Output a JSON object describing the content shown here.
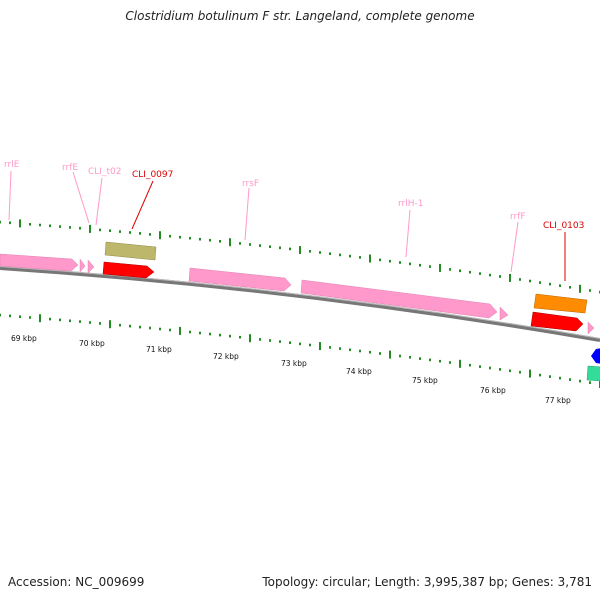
{
  "title": "Clostridium botulinum F str. Langeland, complete genome",
  "footer": {
    "accession": "Accession: NC_009699",
    "topology": "Topology: circular; Length: 3,995,387 bp; Genes: 3,781"
  },
  "colors": {
    "rna_label": "#ff99c8",
    "gene_label": "#dd0000",
    "rna_feature": "#ff99cc",
    "cds_red": "#ff0000",
    "cds_khaki": "#bdb76b",
    "cds_orange": "#ff8c00",
    "cds_blue": "#0000ff",
    "cds_teal": "#33dd99",
    "backbone": "#888888",
    "tick": "#228b22"
  },
  "feature_labels": [
    {
      "key": "rrlE",
      "text": "rrlE"
    },
    {
      "key": "rrfE",
      "text": "rrfE"
    },
    {
      "key": "CLI_t02",
      "text": "CLI_t02"
    },
    {
      "key": "CLI_0097",
      "text": "CLI_0097"
    },
    {
      "key": "rrsF",
      "text": "rrsF"
    },
    {
      "key": "rrlH-1",
      "text": "rrlH-1"
    },
    {
      "key": "rrfF",
      "text": "rrfF"
    },
    {
      "key": "CLI_0103",
      "text": "CLI_0103"
    }
  ],
  "scale_labels": [
    "69 kbp",
    "70 kbp",
    "71 kbp",
    "72 kbp",
    "73 kbp",
    "74 kbp",
    "75 kbp",
    "76 kbp",
    "77 kbp"
  ]
}
